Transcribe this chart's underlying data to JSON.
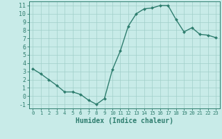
{
  "x": [
    0,
    1,
    2,
    3,
    4,
    5,
    6,
    7,
    8,
    9,
    10,
    11,
    12,
    13,
    14,
    15,
    16,
    17,
    18,
    19,
    20,
    21,
    22,
    23
  ],
  "y": [
    3.3,
    2.7,
    2.0,
    1.3,
    0.5,
    0.5,
    0.2,
    -0.5,
    -1.0,
    -0.3,
    3.2,
    5.5,
    8.5,
    10.0,
    10.6,
    10.7,
    11.0,
    11.0,
    9.3,
    7.8,
    8.3,
    7.5,
    7.4,
    7.1
  ],
  "xlabel": "Humidex (Indice chaleur)",
  "xlim": [
    -0.5,
    23.5
  ],
  "ylim": [
    -1.5,
    11.5
  ],
  "yticks": [
    -1,
    0,
    1,
    2,
    3,
    4,
    5,
    6,
    7,
    8,
    9,
    10,
    11
  ],
  "xticks": [
    0,
    1,
    2,
    3,
    4,
    5,
    6,
    7,
    8,
    9,
    10,
    11,
    12,
    13,
    14,
    15,
    16,
    17,
    18,
    19,
    20,
    21,
    22,
    23
  ],
  "line_color": "#2e7d6e",
  "marker_color": "#2e7d6e",
  "bg_color": "#c8ebe8",
  "grid_color": "#a0cfc9",
  "tick_color": "#2e7d6e",
  "label_color": "#2e7d6e",
  "xlabel_fontsize": 7,
  "tick_fontsize": 6,
  "marker": "D",
  "marker_size": 2.0,
  "line_width": 1.0
}
